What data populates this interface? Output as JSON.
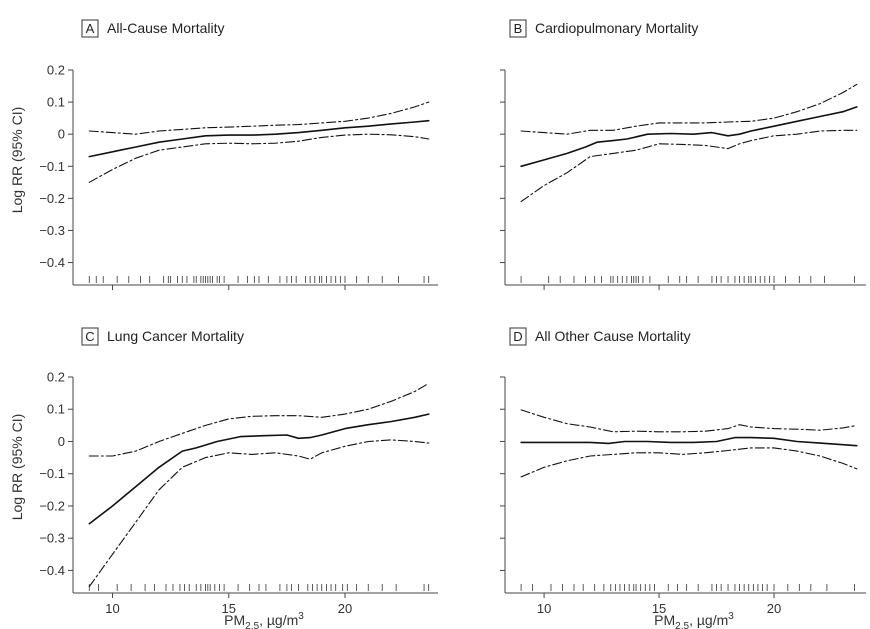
{
  "xlabel": "PM",
  "xlabel_sub": "2.5",
  "xlabel_unit": ", µg/m",
  "xlabel_sup": "3",
  "ylabel": "Log RR (95% CI)",
  "chart_data": [
    {
      "type": "line",
      "letter": "A",
      "title": "All-Cause Mortality",
      "xlim": [
        8.3,
        24.0
      ],
      "ylim": [
        -0.47,
        0.2
      ],
      "xticks": [
        10,
        15,
        20
      ],
      "yticks": [
        0.2,
        0.1,
        0,
        -0.1,
        -0.2,
        -0.3,
        -0.4
      ],
      "ytick_labels": [
        "0.2",
        "0.1",
        "0",
        "−0.1",
        "−0.2",
        "−0.3",
        "−0.4"
      ],
      "rug": [
        9,
        9.3,
        9.6,
        10.2,
        10.7,
        11.2,
        11.6,
        12.2,
        12.4,
        12.5,
        12.8,
        13,
        13.2,
        13.5,
        13.6,
        13.8,
        13.9,
        14,
        14.1,
        14.2,
        14.3,
        14.5,
        14.6,
        14.8,
        15.4,
        15.8,
        16.1,
        16.3,
        16.7,
        17.2,
        17.5,
        17.7,
        17.9,
        18.3,
        18.5,
        18.7,
        18.9,
        19,
        19.2,
        19.4,
        19.6,
        19.8,
        20,
        20.5,
        21,
        21.6,
        22.3,
        23.4,
        23.6
      ],
      "series": [
        {
          "style": "solid",
          "x": [
            9,
            10,
            11,
            12,
            13,
            14,
            15,
            16,
            17,
            18,
            19,
            20,
            21,
            22,
            23,
            23.6
          ],
          "y": [
            -0.07,
            -0.055,
            -0.04,
            -0.025,
            -0.015,
            -0.005,
            -0.003,
            -0.003,
            0,
            0.005,
            0.012,
            0.02,
            0.025,
            0.032,
            0.038,
            0.042
          ]
        },
        {
          "style": "dashdot",
          "x": [
            9,
            10,
            11,
            12,
            13,
            14,
            15,
            16,
            17,
            18,
            19,
            20,
            21,
            22,
            23,
            23.6
          ],
          "y": [
            0.01,
            0.005,
            0.0,
            0.01,
            0.015,
            0.02,
            0.022,
            0.025,
            0.028,
            0.03,
            0.035,
            0.04,
            0.05,
            0.065,
            0.085,
            0.1
          ]
        },
        {
          "style": "dashdot",
          "x": [
            9,
            10,
            11,
            12,
            13,
            14,
            15,
            16,
            17,
            18,
            19,
            20,
            21,
            22,
            23,
            23.6
          ],
          "y": [
            -0.15,
            -0.11,
            -0.075,
            -0.05,
            -0.04,
            -0.03,
            -0.028,
            -0.03,
            -0.028,
            -0.022,
            -0.01,
            -0.003,
            0,
            -0.002,
            -0.008,
            -0.015
          ]
        }
      ]
    },
    {
      "type": "line",
      "letter": "B",
      "title": "Cardiopulmonary Mortality",
      "xlim": [
        8.3,
        24.0
      ],
      "ylim": [
        -0.47,
        0.2
      ],
      "xticks": [
        10,
        15,
        20
      ],
      "yticks": [
        0.2,
        0.1,
        0,
        -0.1,
        -0.2,
        -0.3,
        -0.4
      ],
      "ytick_labels": [
        "0.2",
        "0.1",
        "0",
        "−0.1",
        "−0.2",
        "−0.3",
        "−0.4"
      ],
      "rug": [
        9,
        10.2,
        10.7,
        11.3,
        11.8,
        12.2,
        12.5,
        12.9,
        13,
        13.2,
        13.4,
        13.6,
        13.8,
        13.9,
        14,
        14.1,
        14.3,
        14.6,
        15.4,
        15.9,
        16.2,
        16.7,
        17.3,
        17.5,
        17.7,
        18,
        18.3,
        18.5,
        18.7,
        18.9,
        19,
        19.2,
        19.4,
        19.6,
        19.8,
        20,
        20.5,
        21.1,
        21.6,
        22.2,
        23.5
      ],
      "series": [
        {
          "style": "solid",
          "x": [
            9,
            10,
            11,
            11.8,
            12.3,
            13,
            13.6,
            14.5,
            15.5,
            16.5,
            17.3,
            18,
            18.5,
            19,
            20,
            21,
            22,
            23,
            23.6
          ],
          "y": [
            -0.1,
            -0.08,
            -0.06,
            -0.04,
            -0.025,
            -0.02,
            -0.015,
            0,
            0.002,
            0.0,
            0.005,
            -0.005,
            0,
            0.01,
            0.025,
            0.04,
            0.055,
            0.07,
            0.085
          ]
        },
        {
          "style": "dashdot",
          "x": [
            9,
            10,
            11,
            12,
            13,
            14,
            15,
            16,
            17,
            18,
            19,
            20,
            21,
            22,
            23,
            23.6
          ],
          "y": [
            0.01,
            0.005,
            0.0,
            0.012,
            0.012,
            0.025,
            0.035,
            0.035,
            0.035,
            0.038,
            0.04,
            0.05,
            0.07,
            0.095,
            0.13,
            0.155
          ]
        },
        {
          "style": "dashdot",
          "x": [
            9,
            10,
            11,
            12,
            13,
            14,
            15,
            16,
            17,
            18,
            18.5,
            19,
            20,
            21,
            22,
            23,
            23.6
          ],
          "y": [
            -0.21,
            -0.16,
            -0.12,
            -0.07,
            -0.06,
            -0.05,
            -0.03,
            -0.032,
            -0.035,
            -0.045,
            -0.03,
            -0.02,
            -0.005,
            0.0,
            0.01,
            0.012,
            0.012
          ]
        }
      ]
    },
    {
      "type": "line",
      "letter": "C",
      "title": "Lung Cancer Mortality",
      "xlim": [
        8.3,
        24.0
      ],
      "ylim": [
        -0.47,
        0.2
      ],
      "xticks": [
        10,
        15,
        20
      ],
      "yticks": [
        0.2,
        0.1,
        0,
        -0.1,
        -0.2,
        -0.3,
        -0.4
      ],
      "ytick_labels": [
        "0.2",
        "0.1",
        "0",
        "−0.1",
        "−0.2",
        "−0.3",
        "−0.4"
      ],
      "rug": [
        9,
        9.4,
        10.2,
        10.8,
        11.4,
        11.8,
        12.3,
        12.6,
        12.9,
        13.1,
        13.3,
        13.6,
        13.8,
        14,
        14.1,
        14.2,
        14.4,
        14.6,
        14.8,
        15.4,
        15.9,
        16.3,
        16.6,
        17.2,
        17.5,
        17.7,
        18,
        18.4,
        18.6,
        18.8,
        19,
        19.2,
        19.4,
        19.6,
        19.9,
        20.1,
        20.5,
        21,
        21.6,
        22.2,
        23.4,
        23.6
      ],
      "series": [
        {
          "style": "solid",
          "x": [
            9,
            10,
            11,
            12,
            13,
            13.6,
            14.5,
            15.5,
            16.5,
            17.5,
            18,
            18.5,
            19,
            20,
            21,
            22,
            23,
            23.6
          ],
          "y": [
            -0.255,
            -0.2,
            -0.14,
            -0.08,
            -0.03,
            -0.02,
            0.0,
            0.015,
            0.018,
            0.02,
            0.01,
            0.012,
            0.02,
            0.04,
            0.052,
            0.062,
            0.075,
            0.085
          ]
        },
        {
          "style": "dashdot",
          "x": [
            9,
            10,
            11,
            12,
            13,
            14,
            15,
            16,
            17,
            18,
            19,
            20,
            21,
            22,
            23,
            23.6
          ],
          "y": [
            -0.045,
            -0.045,
            -0.03,
            0.0,
            0.025,
            0.05,
            0.07,
            0.078,
            0.08,
            0.08,
            0.075,
            0.085,
            0.1,
            0.125,
            0.155,
            0.18
          ]
        },
        {
          "style": "dashdot",
          "x": [
            9,
            10,
            11,
            12,
            13,
            14,
            15,
            16,
            17,
            18,
            18.5,
            19,
            20,
            21,
            22,
            23,
            23.6
          ],
          "y": [
            -0.45,
            -0.35,
            -0.25,
            -0.15,
            -0.08,
            -0.05,
            -0.035,
            -0.04,
            -0.035,
            -0.045,
            -0.055,
            -0.035,
            -0.015,
            0.0,
            0.005,
            0.0,
            -0.005
          ]
        }
      ]
    },
    {
      "type": "line",
      "letter": "D",
      "title": "All Other Cause Mortality",
      "xlim": [
        8.3,
        24.0
      ],
      "ylim": [
        -0.47,
        0.2
      ],
      "xticks": [
        10,
        15,
        20
      ],
      "yticks": [
        0.2,
        0.1,
        0,
        -0.1,
        -0.2,
        -0.3,
        -0.4
      ],
      "ytick_labels": [
        "0.2",
        "0.1",
        "0",
        "−0.1",
        "−0.2",
        "−0.3",
        "−0.4"
      ],
      "rug": [
        9,
        9.5,
        10.3,
        10.8,
        11.3,
        11.7,
        12.2,
        12.6,
        12.9,
        13.1,
        13.3,
        13.5,
        13.7,
        13.9,
        14,
        14.2,
        14.4,
        14.6,
        14.8,
        15.4,
        15.8,
        16.2,
        16.7,
        17.3,
        17.5,
        17.7,
        18,
        18.3,
        18.5,
        18.7,
        18.9,
        19.1,
        19.3,
        19.5,
        19.7,
        20,
        20.6,
        21.1,
        21.6,
        22.3,
        23.5
      ],
      "series": [
        {
          "style": "solid",
          "x": [
            9,
            10,
            11,
            12,
            12.8,
            13.5,
            14.5,
            15.5,
            16.5,
            17.5,
            18.3,
            19,
            20,
            21,
            22,
            23,
            23.6
          ],
          "y": [
            -0.003,
            -0.003,
            -0.003,
            -0.003,
            -0.006,
            0.0,
            0.0,
            -0.003,
            -0.003,
            0.0,
            0.012,
            0.012,
            0.01,
            0.0,
            -0.005,
            -0.01,
            -0.013
          ]
        },
        {
          "style": "dashdot",
          "x": [
            9,
            10,
            11,
            12,
            13,
            14,
            15,
            16,
            17,
            18,
            18.5,
            19,
            20,
            21,
            22,
            23,
            23.6
          ],
          "y": [
            0.098,
            0.075,
            0.055,
            0.045,
            0.03,
            0.032,
            0.03,
            0.03,
            0.032,
            0.04,
            0.052,
            0.045,
            0.04,
            0.038,
            0.035,
            0.042,
            0.05
          ]
        },
        {
          "style": "dashdot",
          "x": [
            9,
            10,
            11,
            12,
            13,
            14,
            15,
            16,
            17,
            18,
            19,
            20,
            21,
            22,
            23,
            23.6
          ],
          "y": [
            -0.11,
            -0.08,
            -0.06,
            -0.045,
            -0.04,
            -0.035,
            -0.035,
            -0.04,
            -0.035,
            -0.028,
            -0.02,
            -0.02,
            -0.03,
            -0.045,
            -0.068,
            -0.085
          ]
        }
      ]
    }
  ]
}
